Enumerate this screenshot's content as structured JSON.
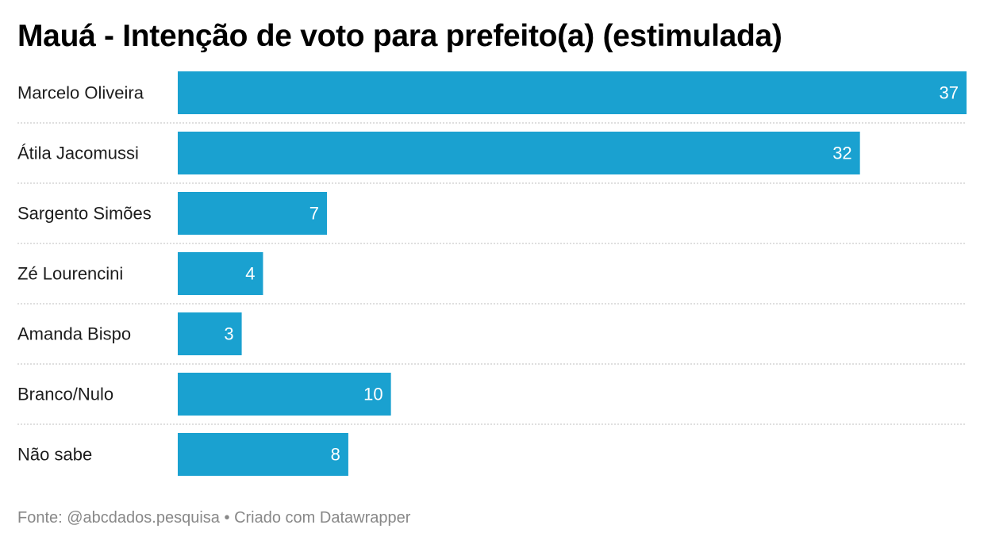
{
  "title": "Mauá - Intenção de voto para prefeito(a) (estimulada)",
  "footer": {
    "source": "Fonte: @abcdados.pesquisa",
    "separator": "•",
    "credit": "Criado com Datawrapper"
  },
  "colors": {
    "bar": "#1aa1d0",
    "value_label": "#ffffff",
    "category_label": "#1d1d1d",
    "row_divider": "#cccccc",
    "footer": "#888888"
  },
  "chart_data": {
    "type": "bar",
    "orientation": "horizontal",
    "categories": [
      "Marcelo Oliveira",
      "Átila Jacomussi",
      "Sargento Simões",
      "Zé Lourencini",
      "Amanda Bispo",
      "Branco/Nulo",
      "Não sabe"
    ],
    "values": [
      37,
      32,
      7,
      4,
      3,
      10,
      8
    ],
    "xlim": [
      0,
      37
    ],
    "grid": false,
    "row_dividers": "dotted",
    "value_labels": "inside-end"
  }
}
